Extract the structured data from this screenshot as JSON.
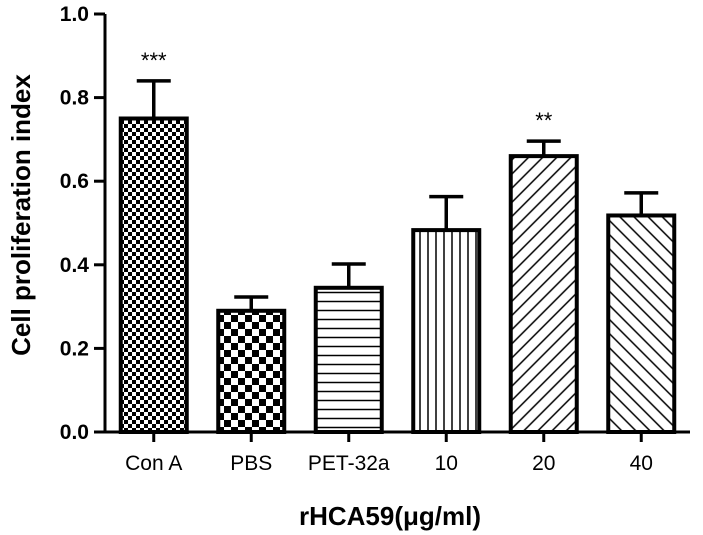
{
  "chart_data": {
    "type": "bar",
    "title": "",
    "xlabel": "rHCA59(μg/ml)",
    "ylabel": "Cell proliferation index",
    "ylim": [
      0,
      1.0
    ],
    "yticks": [
      "0.0",
      "0.2",
      "0.4",
      "0.6",
      "0.8",
      "1.0"
    ],
    "categories": [
      "Con A",
      "PBS",
      "PET-32a",
      "10",
      "20",
      "40"
    ],
    "values": [
      0.75,
      0.29,
      0.345,
      0.483,
      0.66,
      0.518
    ],
    "errors": [
      0.09,
      0.033,
      0.057,
      0.08,
      0.036,
      0.054
    ],
    "significance": [
      "***",
      "",
      "",
      "",
      "**",
      ""
    ],
    "fill_patterns": [
      "small-checker",
      "large-checker",
      "horizontal-lines",
      "vertical-lines",
      "diagonal-lines-forward",
      "diagonal-lines-backward"
    ],
    "grid": false,
    "legend": "none",
    "bar_edge_color": "#000000"
  }
}
